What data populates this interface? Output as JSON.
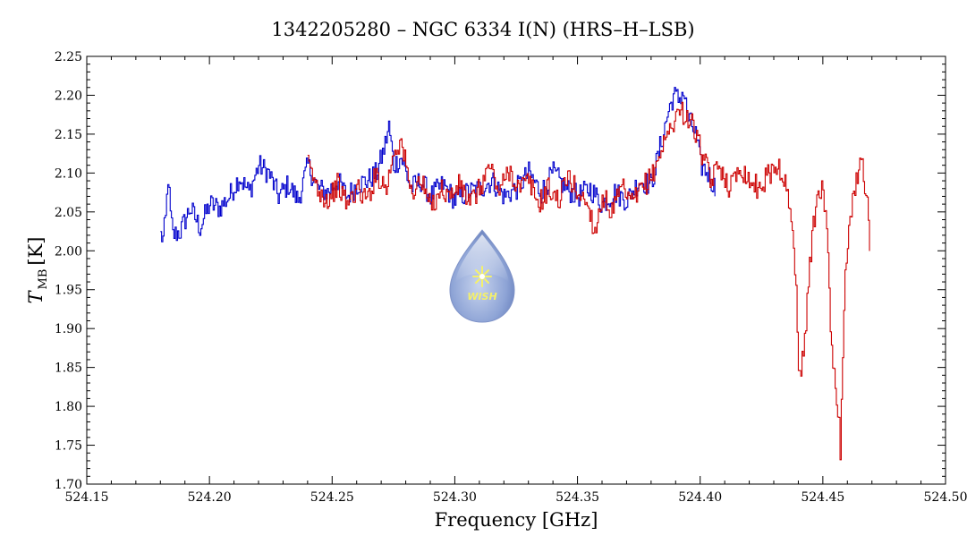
{
  "chart_data": {
    "type": "line",
    "title": "1342205280 – NGC 6334 I(N) (HRS–H–LSB)",
    "xlabel": "Frequency [GHz]",
    "ylabel_main": "T",
    "ylabel_sub": "MB",
    "ylabel_unit": "[K]",
    "xlim": [
      524.15,
      524.5
    ],
    "ylim": [
      1.7,
      2.25
    ],
    "x_ticks": [
      "524.15",
      "524.20",
      "524.25",
      "524.30",
      "524.35",
      "524.40",
      "524.45",
      "524.50"
    ],
    "y_ticks": [
      "1.70",
      "1.75",
      "1.80",
      "1.85",
      "1.90",
      "1.95",
      "2.00",
      "2.05",
      "2.10",
      "2.15",
      "2.20",
      "2.25"
    ],
    "grid": false,
    "series": [
      {
        "name": "blue",
        "color": "#0000cc",
        "anchors": [
          [
            524.18,
            2.02
          ],
          [
            524.181,
            2.015
          ],
          [
            524.182,
            2.04
          ],
          [
            524.183,
            2.095
          ],
          [
            524.184,
            2.045
          ],
          [
            524.185,
            2.02
          ],
          [
            524.188,
            2.025
          ],
          [
            524.192,
            2.055
          ],
          [
            524.196,
            2.03
          ],
          [
            524.2,
            2.06
          ],
          [
            524.204,
            2.055
          ],
          [
            524.208,
            2.07
          ],
          [
            524.212,
            2.095
          ],
          [
            524.216,
            2.075
          ],
          [
            524.22,
            2.11
          ],
          [
            524.224,
            2.1
          ],
          [
            524.228,
            2.07
          ],
          [
            524.232,
            2.085
          ],
          [
            524.236,
            2.065
          ],
          [
            524.24,
            2.11
          ],
          [
            524.244,
            2.08
          ],
          [
            524.248,
            2.075
          ],
          [
            524.252,
            2.09
          ],
          [
            524.256,
            2.07
          ],
          [
            524.26,
            2.085
          ],
          [
            524.264,
            2.09
          ],
          [
            524.268,
            2.1
          ],
          [
            524.271,
            2.13
          ],
          [
            524.273,
            2.16
          ],
          [
            524.275,
            2.11
          ],
          [
            524.278,
            2.12
          ],
          [
            524.282,
            2.08
          ],
          [
            524.286,
            2.09
          ],
          [
            524.29,
            2.07
          ],
          [
            524.295,
            2.085
          ],
          [
            524.3,
            2.065
          ],
          [
            524.305,
            2.075
          ],
          [
            524.31,
            2.08
          ],
          [
            524.315,
            2.09
          ],
          [
            524.32,
            2.07
          ],
          [
            524.325,
            2.08
          ],
          [
            524.33,
            2.1
          ],
          [
            524.335,
            2.075
          ],
          [
            524.34,
            2.1
          ],
          [
            524.345,
            2.08
          ],
          [
            524.35,
            2.07
          ],
          [
            524.355,
            2.08
          ],
          [
            524.36,
            2.06
          ],
          [
            524.365,
            2.075
          ],
          [
            524.37,
            2.065
          ],
          [
            524.375,
            2.09
          ],
          [
            524.38,
            2.085
          ],
          [
            524.384,
            2.14
          ],
          [
            524.387,
            2.18
          ],
          [
            524.389,
            2.2
          ],
          [
            524.391,
            2.195
          ],
          [
            524.393,
            2.205
          ],
          [
            524.395,
            2.17
          ],
          [
            524.398,
            2.15
          ],
          [
            524.4,
            2.11
          ],
          [
            524.403,
            2.1
          ],
          [
            524.406,
            2.08
          ]
        ]
      },
      {
        "name": "red",
        "color": "#cc0000",
        "anchors": [
          [
            524.24,
            2.11
          ],
          [
            524.244,
            2.08
          ],
          [
            524.248,
            2.065
          ],
          [
            524.252,
            2.085
          ],
          [
            524.256,
            2.06
          ],
          [
            524.26,
            2.08
          ],
          [
            524.264,
            2.065
          ],
          [
            524.268,
            2.1
          ],
          [
            524.272,
            2.08
          ],
          [
            524.275,
            2.13
          ],
          [
            524.278,
            2.14
          ],
          [
            524.282,
            2.075
          ],
          [
            524.286,
            2.09
          ],
          [
            524.29,
            2.055
          ],
          [
            524.294,
            2.08
          ],
          [
            524.298,
            2.07
          ],
          [
            524.302,
            2.085
          ],
          [
            524.306,
            2.06
          ],
          [
            524.31,
            2.08
          ],
          [
            524.314,
            2.11
          ],
          [
            524.318,
            2.075
          ],
          [
            524.322,
            2.105
          ],
          [
            524.326,
            2.08
          ],
          [
            524.33,
            2.09
          ],
          [
            524.334,
            2.06
          ],
          [
            524.338,
            2.08
          ],
          [
            524.342,
            2.065
          ],
          [
            524.346,
            2.095
          ],
          [
            524.35,
            2.075
          ],
          [
            524.354,
            2.06
          ],
          [
            524.357,
            2.025
          ],
          [
            524.36,
            2.07
          ],
          [
            524.364,
            2.05
          ],
          [
            524.368,
            2.08
          ],
          [
            524.372,
            2.06
          ],
          [
            524.376,
            2.08
          ],
          [
            524.38,
            2.095
          ],
          [
            524.384,
            2.13
          ],
          [
            524.388,
            2.16
          ],
          [
            524.391,
            2.18
          ],
          [
            524.394,
            2.175
          ],
          [
            524.397,
            2.16
          ],
          [
            524.4,
            2.13
          ],
          [
            524.404,
            2.09
          ],
          [
            524.408,
            2.11
          ],
          [
            524.412,
            2.08
          ],
          [
            524.416,
            2.11
          ],
          [
            524.42,
            2.09
          ],
          [
            524.424,
            2.08
          ],
          [
            524.428,
            2.1
          ],
          [
            524.432,
            2.11
          ],
          [
            524.435,
            2.08
          ],
          [
            524.437,
            2.04
          ],
          [
            524.439,
            1.95
          ],
          [
            524.44,
            1.86
          ],
          [
            524.441,
            1.84
          ],
          [
            524.443,
            1.91
          ],
          [
            524.445,
            2.0
          ],
          [
            524.447,
            2.06
          ],
          [
            524.449,
            2.08
          ],
          [
            524.451,
            2.06
          ],
          [
            524.452,
            2.0
          ],
          [
            524.453,
            1.9
          ],
          [
            524.454,
            1.86
          ],
          [
            524.455,
            1.83
          ],
          [
            524.456,
            1.8
          ],
          [
            524.457,
            1.745
          ],
          [
            524.458,
            1.85
          ],
          [
            524.459,
            1.97
          ],
          [
            524.461,
            2.05
          ],
          [
            524.463,
            2.08
          ],
          [
            524.465,
            2.12
          ],
          [
            524.466,
            2.125
          ],
          [
            524.467,
            2.08
          ],
          [
            524.468,
            2.06
          ],
          [
            524.469,
            2.0
          ]
        ]
      }
    ],
    "logo_text": "WISH"
  }
}
